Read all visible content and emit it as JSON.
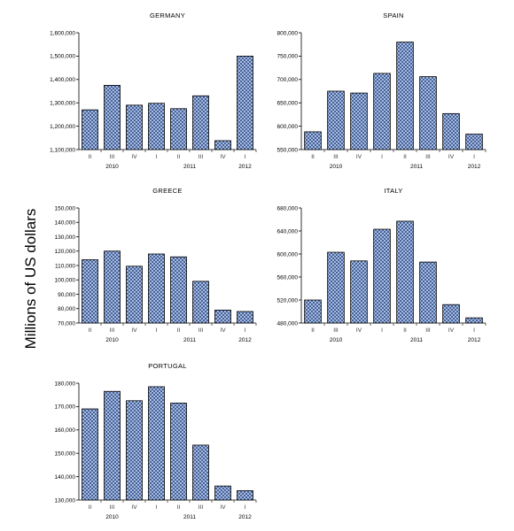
{
  "figure": {
    "ylabel": "Millions of US dollars"
  },
  "chart_data": [
    {
      "type": "bar",
      "title": "GERMANY",
      "categories": [
        "II",
        "III",
        "IV",
        "I",
        "II",
        "III",
        "IV",
        "I"
      ],
      "years": [
        "2010",
        "2011",
        "2012"
      ],
      "values": [
        1270000,
        1375000,
        1290000,
        1298000,
        1275000,
        1330000,
        1138000,
        1500000
      ],
      "ylim": [
        1100000,
        1600000
      ],
      "yticks": [
        1100000,
        1200000,
        1300000,
        1400000,
        1500000,
        1600000
      ],
      "ytick_labels": [
        "1,100,000",
        "1,200,000",
        "1,300,000",
        "1,400,000",
        "1,500,000",
        "1,600,000"
      ]
    },
    {
      "type": "bar",
      "title": "SPAIN",
      "categories": [
        "II",
        "III",
        "IV",
        "I",
        "II",
        "III",
        "IV",
        "I"
      ],
      "years": [
        "2010",
        "2011",
        "2012"
      ],
      "values": [
        588000,
        675000,
        671000,
        713000,
        780000,
        706000,
        627000,
        583000
      ],
      "ylim": [
        550000,
        800000
      ],
      "yticks": [
        550000,
        600000,
        650000,
        700000,
        750000,
        800000
      ],
      "ytick_labels": [
        "550,000",
        "600,000",
        "650,000",
        "700,000",
        "750,000",
        "800,000"
      ]
    },
    {
      "type": "bar",
      "title": "GREECE",
      "categories": [
        "II",
        "III",
        "IV",
        "I",
        "II",
        "III",
        "IV",
        "I"
      ],
      "years": [
        "2010",
        "2011",
        "2012"
      ],
      "values": [
        114000,
        120000,
        109500,
        118000,
        116000,
        99000,
        79000,
        78000
      ],
      "ylim": [
        70000,
        150000
      ],
      "yticks": [
        70000,
        80000,
        90000,
        100000,
        110000,
        120000,
        130000,
        140000,
        150000
      ],
      "ytick_labels": [
        "70,000",
        "80,000",
        "90,000",
        "100,000",
        "110,000",
        "120,000",
        "130,000",
        "140,000",
        "150,000"
      ]
    },
    {
      "type": "bar",
      "title": "ITALY",
      "categories": [
        "II",
        "III",
        "IV",
        "I",
        "II",
        "III",
        "IV",
        "I"
      ],
      "years": [
        "2010",
        "2011",
        "2012"
      ],
      "values": [
        520000,
        603000,
        588000,
        643000,
        657000,
        586000,
        512000,
        489000
      ],
      "ylim": [
        480000,
        680000
      ],
      "yticks": [
        480000,
        520000,
        560000,
        600000,
        640000,
        680000
      ],
      "ytick_labels": [
        "480,000",
        "520,000",
        "560,000",
        "600,000",
        "640,000",
        "680,000"
      ]
    },
    {
      "type": "bar",
      "title": "PORTUGAL",
      "categories": [
        "II",
        "III",
        "IV",
        "I",
        "II",
        "III",
        "IV",
        "I"
      ],
      "years": [
        "2010",
        "2011",
        "2012"
      ],
      "values": [
        169000,
        176500,
        172500,
        178500,
        171500,
        153500,
        136000,
        134000
      ],
      "ylim": [
        130000,
        180000
      ],
      "yticks": [
        130000,
        140000,
        150000,
        160000,
        170000,
        180000
      ],
      "ytick_labels": [
        "130,000",
        "140,000",
        "150,000",
        "160,000",
        "170,000",
        "180,000"
      ]
    }
  ],
  "colors": {
    "bar_fill": "#b9cdef",
    "hatch": "#1f3d7a",
    "bar_edge": "#000000",
    "axis": "#000000"
  }
}
